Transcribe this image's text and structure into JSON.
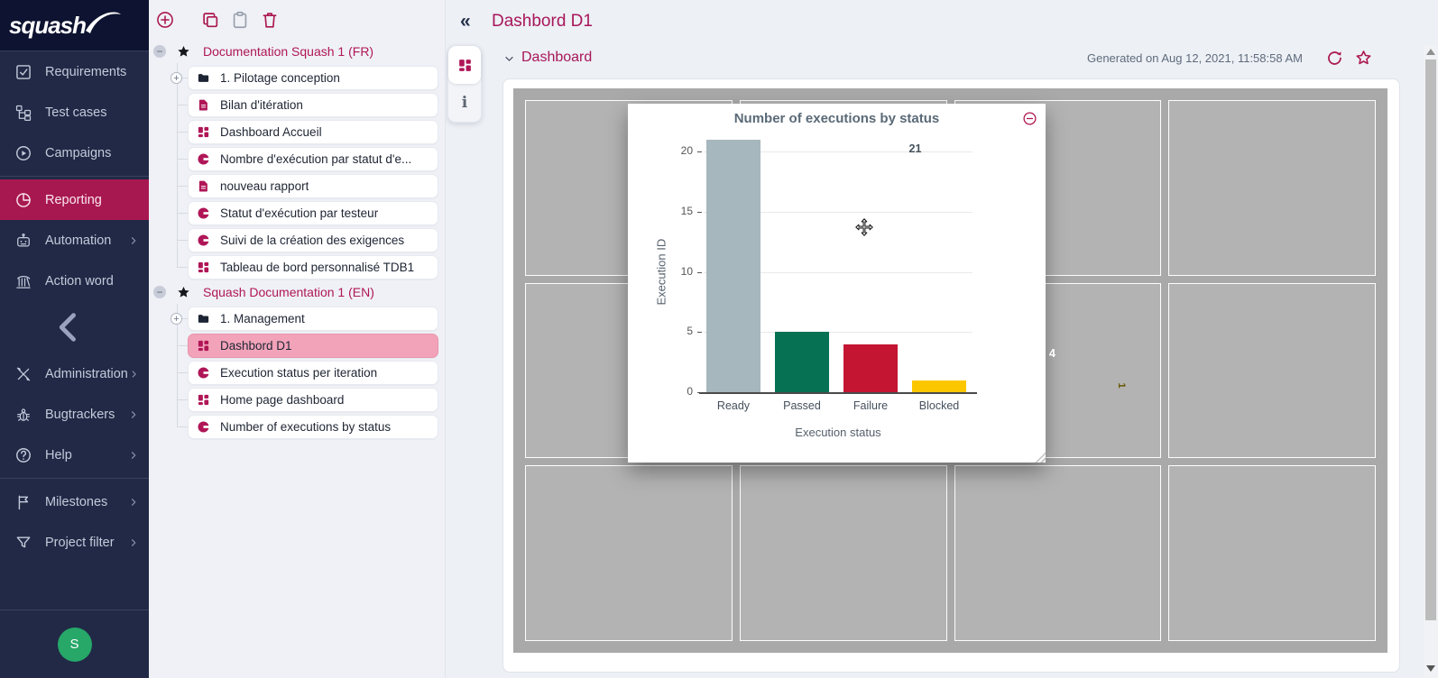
{
  "app": {
    "logo_text": "squash"
  },
  "colors": {
    "accent": "#b01657",
    "sidebar_bg": "#212946",
    "sidebar_active_bg": "#a81850",
    "selected_pill_bg": "#f2a3b9",
    "avatar_bg": "#27a768",
    "dashboard_bg": "#a9a9a9",
    "dashboard_cell": "#b3b3b3"
  },
  "sidebar": {
    "items": [
      {
        "type": "item",
        "icon": "requirements",
        "label": "Requirements"
      },
      {
        "type": "item",
        "icon": "test-cases",
        "label": "Test cases"
      },
      {
        "type": "item",
        "icon": "campaigns",
        "label": "Campaigns"
      },
      {
        "type": "divider"
      },
      {
        "type": "item",
        "icon": "reporting",
        "label": "Reporting",
        "active": true
      },
      {
        "type": "item",
        "icon": "automation",
        "label": "Automation",
        "submenu": true
      },
      {
        "type": "item",
        "icon": "action-word",
        "label": "Action word"
      },
      {
        "type": "collapse"
      },
      {
        "type": "item",
        "icon": "administration",
        "label": "Administration",
        "submenu": true
      },
      {
        "type": "item",
        "icon": "bugtrackers",
        "label": "Bugtrackers",
        "submenu": true
      },
      {
        "type": "item",
        "icon": "help",
        "label": "Help",
        "submenu": true
      },
      {
        "type": "divider"
      },
      {
        "type": "item",
        "icon": "milestones",
        "label": "Milestones",
        "submenu": true
      },
      {
        "type": "item",
        "icon": "project-filter",
        "label": "Project filter",
        "submenu": true
      }
    ],
    "avatar_initial": "S"
  },
  "tree": {
    "toolbar": [
      {
        "icon": "plus-circle",
        "name": "new-report-button",
        "color": "accent"
      },
      {
        "icon": "copy",
        "name": "copy-button",
        "color": "accent"
      },
      {
        "icon": "paste",
        "name": "paste-button",
        "color": "gray"
      },
      {
        "icon": "trash",
        "name": "delete-button",
        "color": "accent"
      }
    ],
    "projects": [
      {
        "name": "Documentation Squash 1 (FR)",
        "items": [
          {
            "icon": "folder",
            "label": "1. Pilotage conception",
            "expandable": true
          },
          {
            "icon": "file",
            "label": "Bilan d'itération"
          },
          {
            "icon": "grid",
            "label": "Dashboard Accueil"
          },
          {
            "icon": "pie",
            "label": "Nombre d'exécution par statut d'e..."
          },
          {
            "icon": "file",
            "label": "nouveau rapport"
          },
          {
            "icon": "pie",
            "label": "Statut d'exécution par testeur"
          },
          {
            "icon": "pie",
            "label": "Suivi de la création des exigences"
          },
          {
            "icon": "grid",
            "label": "Tableau de bord personnalisé TDB1"
          }
        ]
      },
      {
        "name": "Squash Documentation 1 (EN)",
        "items": [
          {
            "icon": "folder",
            "label": "1. Management",
            "expandable": true
          },
          {
            "icon": "grid",
            "label": "Dashbord D1",
            "selected": true
          },
          {
            "icon": "pie",
            "label": "Execution status per iteration"
          },
          {
            "icon": "grid",
            "label": "Home page dashboard"
          },
          {
            "icon": "pie",
            "label": "Number of executions by status"
          }
        ]
      }
    ]
  },
  "header": {
    "back_glyph": "«",
    "title": "Dashbord D1"
  },
  "section": {
    "title": "Dashboard",
    "generated": "Generated on Aug 12, 2021, 11:58:58 AM"
  },
  "dashboard_grid": {
    "columns": 4,
    "rows": 3
  },
  "chart_data": {
    "type": "bar",
    "title": "Number of executions by status",
    "categories": [
      "Ready",
      "Passed",
      "Failure",
      "Blocked"
    ],
    "values": [
      21,
      5,
      4,
      1
    ],
    "bar_colors": [
      "#a6b7bd",
      "#067153",
      "#c41532",
      "#fdc700"
    ],
    "value_label_colors": [
      "#44525b",
      "#ffffff",
      "#ffffff",
      "#6a5500"
    ],
    "xlabel": "Execution status",
    "ylabel": "Execution ID",
    "yticks": [
      0,
      5,
      10,
      15,
      20
    ],
    "ylim": [
      0,
      21
    ],
    "grid": true,
    "legend": "none"
  }
}
